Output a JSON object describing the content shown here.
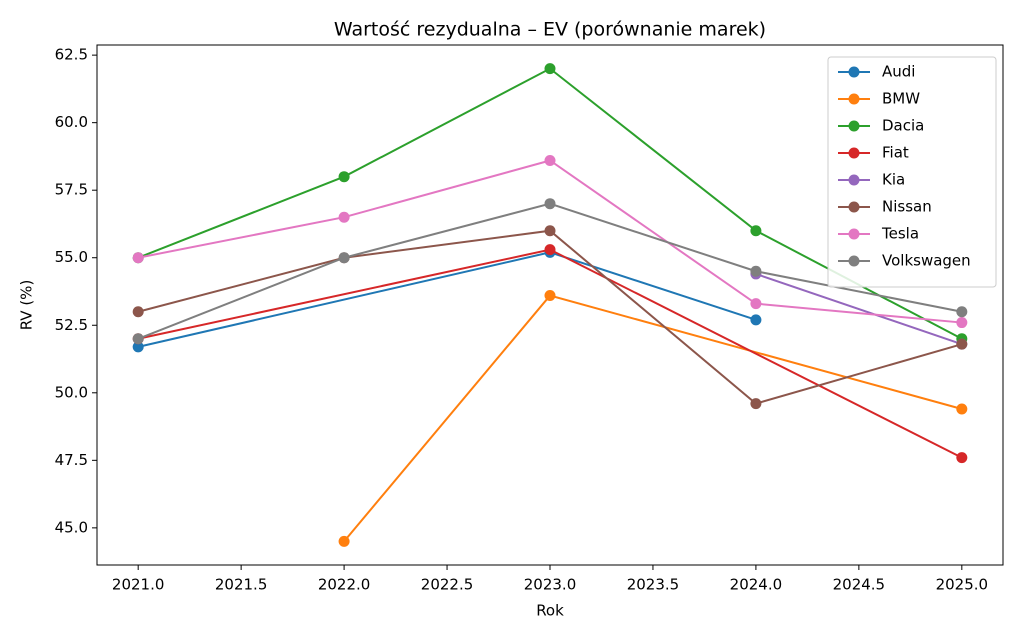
{
  "chart_data": {
    "type": "line",
    "title": "Wartość rezydualna – EV (porównanie marek)",
    "x_label": "Rok",
    "y_label": "RV (%)",
    "xlim": [
      2020.8,
      2025.2
    ],
    "xticks": [
      {
        "value": 2021.0,
        "label": "2021.0"
      },
      {
        "value": 2021.5,
        "label": "2021.5"
      },
      {
        "value": 2022.0,
        "label": "2022.0"
      },
      {
        "value": 2022.5,
        "label": "2022.5"
      },
      {
        "value": 2023.0,
        "label": "2023.0"
      },
      {
        "value": 2023.5,
        "label": "2023.5"
      },
      {
        "value": 2024.0,
        "label": "2024.0"
      },
      {
        "value": 2024.5,
        "label": "2024.5"
      },
      {
        "value": 2025.0,
        "label": "2025.0"
      }
    ],
    "ylim": [
      43.625,
      62.875
    ],
    "yticks": [
      {
        "value": 45.0,
        "label": "45.0"
      },
      {
        "value": 47.5,
        "label": "47.5"
      },
      {
        "value": 50.0,
        "label": "50.0"
      },
      {
        "value": 52.5,
        "label": "52.5"
      },
      {
        "value": 55.0,
        "label": "55.0"
      },
      {
        "value": 57.5,
        "label": "57.5"
      },
      {
        "value": 60.0,
        "label": "60.0"
      },
      {
        "value": 62.5,
        "label": "62.5"
      }
    ],
    "legend": "upper right",
    "series": [
      {
        "name": "Audi",
        "color": "#1f77b4",
        "x": [
          2021,
          2023,
          2024
        ],
        "values": [
          51.7,
          55.2,
          52.7
        ]
      },
      {
        "name": "BMW",
        "color": "#ff7f0e",
        "x": [
          2022,
          2023,
          2025
        ],
        "values": [
          44.5,
          53.6,
          49.4
        ]
      },
      {
        "name": "Dacia",
        "color": "#2ca02c",
        "x": [
          2021,
          2022,
          2023,
          2024,
          2025
        ],
        "values": [
          55.0,
          58.0,
          62.0,
          56.0,
          52.0
        ]
      },
      {
        "name": "Fiat",
        "color": "#d62728",
        "x": [
          2021,
          2023,
          2025
        ],
        "values": [
          52.0,
          55.3,
          47.6
        ]
      },
      {
        "name": "Kia",
        "color": "#9467bd",
        "x": [
          2024,
          2025
        ],
        "values": [
          54.4,
          51.8
        ]
      },
      {
        "name": "Nissan",
        "color": "#8c564b",
        "x": [
          2021,
          2022,
          2023,
          2024,
          2025
        ],
        "values": [
          53.0,
          55.0,
          56.0,
          49.6,
          51.8
        ]
      },
      {
        "name": "Tesla",
        "color": "#e377c2",
        "x": [
          2021,
          2022,
          2023,
          2024,
          2025
        ],
        "values": [
          55.0,
          56.5,
          58.6,
          53.3,
          52.6
        ]
      },
      {
        "name": "Volkswagen",
        "color": "#7f7f7f",
        "x": [
          2021,
          2022,
          2023,
          2024,
          2025
        ],
        "values": [
          52.0,
          55.0,
          57.0,
          54.5,
          53.0
        ]
      }
    ]
  }
}
